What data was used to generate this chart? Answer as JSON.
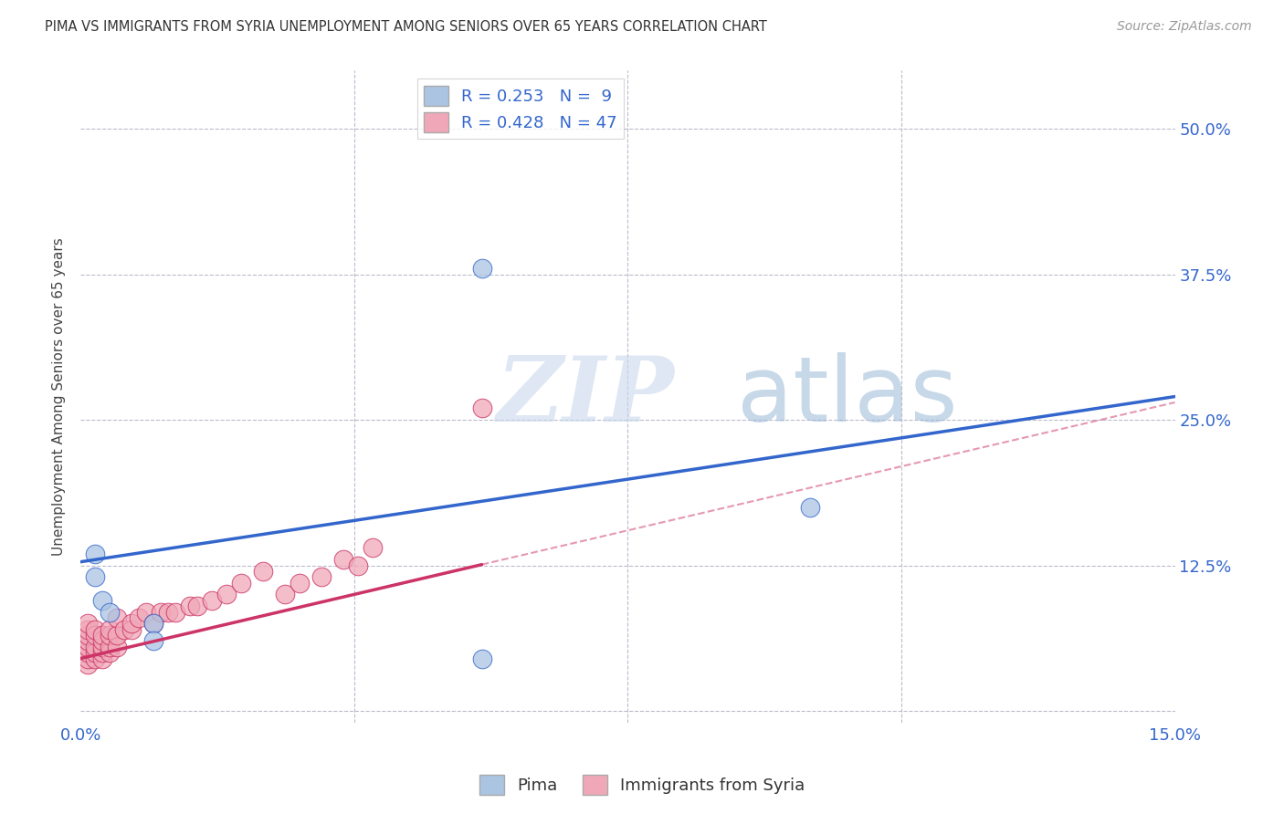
{
  "title": "PIMA VS IMMIGRANTS FROM SYRIA UNEMPLOYMENT AMONG SENIORS OVER 65 YEARS CORRELATION CHART",
  "source": "Source: ZipAtlas.com",
  "ylabel": "Unemployment Among Seniors over 65 years",
  "pima_color": "#aac4e2",
  "syria_color": "#f0a8b8",
  "pima_line_color": "#3366cc",
  "syria_line_color": "#cc3366",
  "R_pima": 0.253,
  "N_pima": 9,
  "R_syria": 0.428,
  "N_syria": 47,
  "watermark_zip": "ZIP",
  "watermark_atlas": "atlas",
  "background_color": "#ffffff",
  "pima_line_x0": 0.0,
  "pima_line_y0": 0.128,
  "pima_line_x1": 0.15,
  "pima_line_y1": 0.27,
  "syria_line_x0": 0.0,
  "syria_line_y0": 0.045,
  "syria_line_x1": 0.15,
  "syria_line_y1": 0.265,
  "pima_scatter_x": [
    0.002,
    0.002,
    0.003,
    0.004,
    0.01,
    0.01,
    0.055,
    0.1,
    0.055
  ],
  "pima_scatter_y": [
    0.135,
    0.115,
    0.095,
    0.085,
    0.075,
    0.06,
    0.045,
    0.175,
    0.38
  ],
  "syria_scatter_x": [
    0.001,
    0.001,
    0.001,
    0.001,
    0.001,
    0.001,
    0.001,
    0.001,
    0.002,
    0.002,
    0.002,
    0.002,
    0.002,
    0.003,
    0.003,
    0.003,
    0.003,
    0.003,
    0.004,
    0.004,
    0.004,
    0.004,
    0.005,
    0.005,
    0.005,
    0.006,
    0.007,
    0.007,
    0.008,
    0.009,
    0.01,
    0.011,
    0.012,
    0.013,
    0.015,
    0.016,
    0.018,
    0.02,
    0.022,
    0.025,
    0.028,
    0.03,
    0.033,
    0.036,
    0.038,
    0.04,
    0.055
  ],
  "syria_scatter_y": [
    0.04,
    0.045,
    0.05,
    0.055,
    0.06,
    0.065,
    0.07,
    0.075,
    0.045,
    0.05,
    0.055,
    0.065,
    0.07,
    0.045,
    0.05,
    0.055,
    0.06,
    0.065,
    0.05,
    0.055,
    0.065,
    0.07,
    0.055,
    0.065,
    0.08,
    0.07,
    0.07,
    0.075,
    0.08,
    0.085,
    0.075,
    0.085,
    0.085,
    0.085,
    0.09,
    0.09,
    0.095,
    0.1,
    0.11,
    0.12,
    0.1,
    0.11,
    0.115,
    0.13,
    0.125,
    0.14,
    0.26
  ],
  "xlim": [
    0.0,
    0.15
  ],
  "ylim": [
    -0.01,
    0.55
  ],
  "xticks": [
    0.0,
    0.0375,
    0.075,
    0.1125,
    0.15
  ],
  "yticks": [
    0.0,
    0.125,
    0.25,
    0.375,
    0.5
  ]
}
